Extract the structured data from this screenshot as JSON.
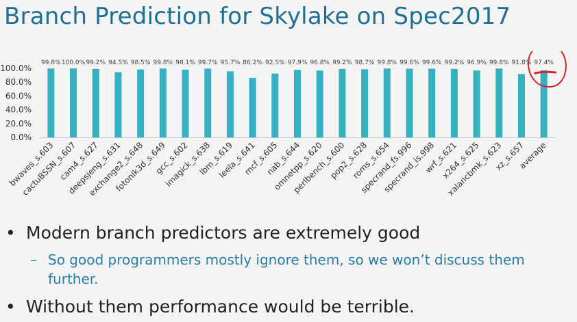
{
  "slide": {
    "title": "Branch Prediction for Skylake on Spec2017",
    "bullet1": "Modern branch predictors are extremely good",
    "sub_bullet": "So good programmers mostly ignore them, so we won’t discuss them further.",
    "bullet2": "Without them performance would be terrible.",
    "bullet_glyph": "•",
    "dash_glyph": "–"
  },
  "chart_data": {
    "type": "bar",
    "title": "",
    "xlabel": "",
    "ylabel": "",
    "ylim": [
      0,
      100
    ],
    "yticks": [
      "0.0%",
      "20.0%",
      "40.0%",
      "60.0%",
      "80.0%",
      "100.0%"
    ],
    "categories": [
      "bwaves_s.603",
      "cactuBSSN_s.607",
      "cam4_s.627",
      "deepsjeng_s.631",
      "exchange2_s.648",
      "fotonik3d_s.649",
      "gcc_s.602",
      "imagick_s.638",
      "lbm_s.619",
      "leela_s.641",
      "mcf_s.605",
      "nab_s.644",
      "omnetpp_s.620",
      "perlbench_s.600",
      "pop2_s.628",
      "roms_s.654",
      "specrand_fs.996",
      "specrand_is.998",
      "wrf_s.621",
      "x264_s.625",
      "xalancbmk_s.623",
      "xz_s.657",
      "average"
    ],
    "values": [
      99.8,
      100.0,
      99.2,
      94.5,
      98.5,
      99.8,
      98.1,
      99.7,
      95.7,
      86.2,
      92.5,
      97.9,
      96.8,
      99.2,
      98.7,
      99.8,
      99.6,
      99.6,
      99.2,
      96.9,
      99.8,
      91.8,
      97.4
    ],
    "labels": [
      "99.8%",
      "100.0%",
      "99.2%",
      "94.5%",
      "98.5%",
      "99.8%",
      "98.1%",
      "99.7%",
      "95.7%",
      "86.2%",
      "92.5%",
      "97.9%",
      "96.8%",
      "99.2%",
      "98.7%",
      "99.8%",
      "99.6%",
      "99.6%",
      "99.2%",
      "96.9%",
      "99.8%",
      "91.8%",
      "97.4%"
    ],
    "bar_color": "#35b1c4",
    "highlight_color": "#d9232a",
    "highlighted_category": "average"
  }
}
